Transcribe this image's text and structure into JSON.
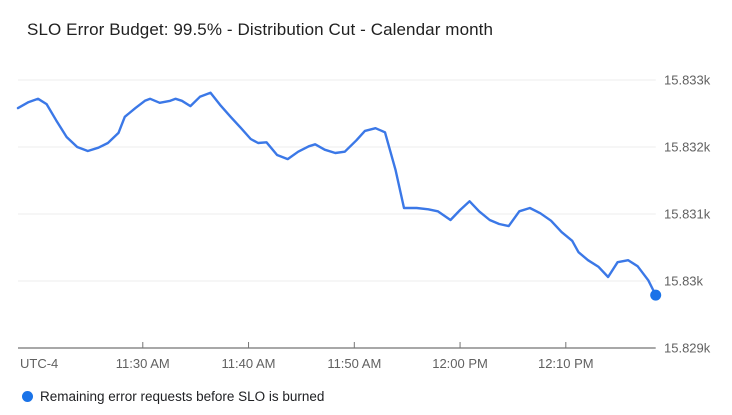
{
  "header": {
    "title": "SLO Error Budget: 99.5% - Distribution Cut - Calendar month"
  },
  "legend": {
    "label": "Remaining error requests before SLO is burned",
    "color": "#1a73e8"
  },
  "colors": {
    "line": "#3b78e7",
    "marker": "#1a73e8",
    "gridline": "#ececec",
    "axis_line": "#757575",
    "tick_label": "#616161"
  },
  "chart_data": {
    "type": "line",
    "title": "SLO Error Budget: 99.5% - Distribution Cut - Calendar month",
    "xlabel": "",
    "ylabel": "",
    "x_axis": {
      "utc_label": "UTC-4",
      "start_minute": 0,
      "end_minute": 60.3,
      "ticks": [
        {
          "minute": 11.8,
          "label": "11:30 AM"
        },
        {
          "minute": 21.8,
          "label": "11:40 AM"
        },
        {
          "minute": 31.8,
          "label": "11:50 AM"
        },
        {
          "minute": 41.8,
          "label": "12:00 PM"
        },
        {
          "minute": 51.8,
          "label": "12:10 PM"
        }
      ]
    },
    "y_axis": {
      "min": 15829,
      "max": 15833,
      "ticks": [
        {
          "value": 15833,
          "label": "15.833k"
        },
        {
          "value": 15832,
          "label": "15.832k"
        },
        {
          "value": 15831,
          "label": "15.831k"
        },
        {
          "value": 15830,
          "label": "15.83k"
        },
        {
          "value": 15829,
          "label": "15.829k"
        }
      ]
    },
    "grid": "horizontal-only",
    "legend_position": "bottom-left",
    "series": [
      {
        "name": "Remaining error requests before SLO is burned",
        "end_marker": true,
        "points": [
          [
            0,
            15832.58
          ],
          [
            1,
            15832.67
          ],
          [
            1.9,
            15832.72
          ],
          [
            2.7,
            15832.64
          ],
          [
            3.6,
            15832.4
          ],
          [
            4.6,
            15832.15
          ],
          [
            5.6,
            15832.0
          ],
          [
            6.6,
            15831.94
          ],
          [
            7.6,
            15831.99
          ],
          [
            8.5,
            15832.06
          ],
          [
            9.5,
            15832.21
          ],
          [
            10.1,
            15832.45
          ],
          [
            11.1,
            15832.58
          ],
          [
            12,
            15832.69
          ],
          [
            12.5,
            15832.72
          ],
          [
            13.4,
            15832.66
          ],
          [
            14.4,
            15832.69
          ],
          [
            14.9,
            15832.72
          ],
          [
            15.5,
            15832.69
          ],
          [
            16.3,
            15832.61
          ],
          [
            17.2,
            15832.75
          ],
          [
            18.2,
            15832.81
          ],
          [
            19.1,
            15832.63
          ],
          [
            20.1,
            15832.45
          ],
          [
            21.1,
            15832.28
          ],
          [
            22,
            15832.12
          ],
          [
            22.7,
            15832.06
          ],
          [
            23.5,
            15832.07
          ],
          [
            24.5,
            15831.88
          ],
          [
            25.5,
            15831.82
          ],
          [
            26.5,
            15831.93
          ],
          [
            27.5,
            15832.01
          ],
          [
            28.1,
            15832.04
          ],
          [
            29,
            15831.96
          ],
          [
            30,
            15831.91
          ],
          [
            30.9,
            15831.93
          ],
          [
            32,
            15832.1
          ],
          [
            32.8,
            15832.24
          ],
          [
            33.8,
            15832.28
          ],
          [
            34.7,
            15832.22
          ],
          [
            35.7,
            15831.66
          ],
          [
            36.5,
            15831.09
          ],
          [
            37.7,
            15831.09
          ],
          [
            38.8,
            15831.07
          ],
          [
            39.7,
            15831.04
          ],
          [
            40.9,
            15830.91
          ],
          [
            41.8,
            15831.06
          ],
          [
            42.7,
            15831.19
          ],
          [
            43.6,
            15831.04
          ],
          [
            44.6,
            15830.91
          ],
          [
            45.5,
            15830.85
          ],
          [
            46.4,
            15830.82
          ],
          [
            47.4,
            15831.04
          ],
          [
            48.4,
            15831.09
          ],
          [
            49.4,
            15831.01
          ],
          [
            50.4,
            15830.9
          ],
          [
            51.4,
            15830.73
          ],
          [
            52.4,
            15830.6
          ],
          [
            53,
            15830.43
          ],
          [
            53.9,
            15830.31
          ],
          [
            54.9,
            15830.21
          ],
          [
            55.8,
            15830.06
          ],
          [
            56.7,
            15830.28
          ],
          [
            57.7,
            15830.31
          ],
          [
            58.6,
            15830.22
          ],
          [
            59.6,
            15830.01
          ],
          [
            60.3,
            15829.79
          ]
        ]
      }
    ]
  }
}
